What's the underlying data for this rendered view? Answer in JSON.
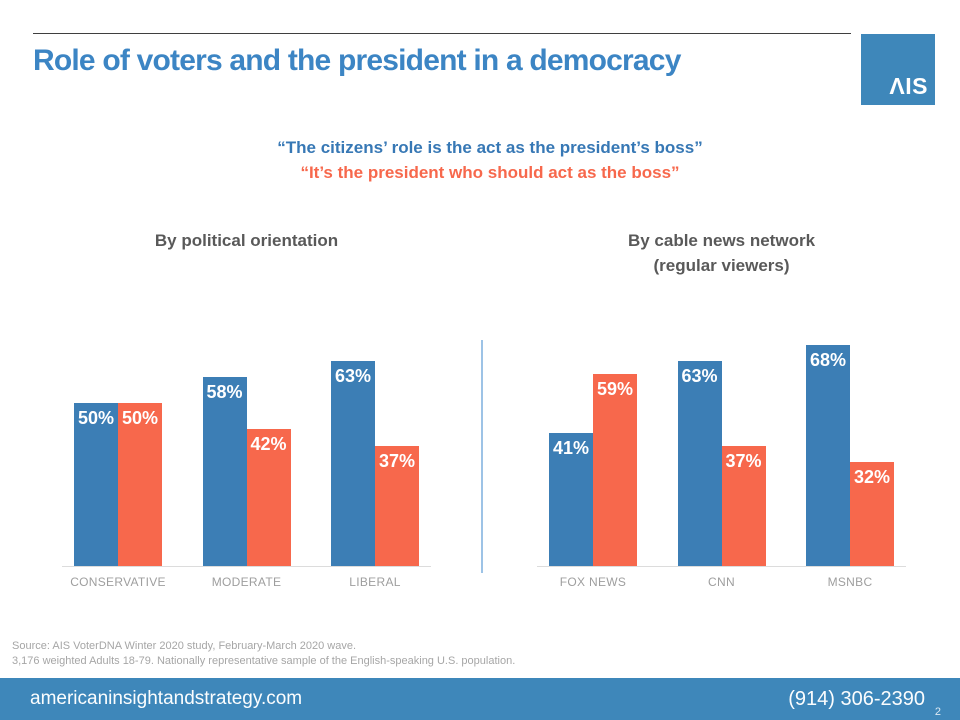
{
  "slide": {
    "title": "Role of voters and the president in a democracy",
    "logo_text": "ΛIS",
    "quote_blue": "“The citizens’ role is the act as the president’s boss”",
    "quote_orange": "“It’s the president who should act as the boss”",
    "page_number": "2"
  },
  "colors": {
    "bar_blue": "#3c7eb5",
    "bar_orange": "#f7684c",
    "title_blue": "#3c85c4",
    "footer_blue": "#3e87ba",
    "divider_blue": "#9dc3e6"
  },
  "chart_data": [
    {
      "type": "bar",
      "title": "By political orientation",
      "subtitle": "",
      "categories": [
        "CONSERVATIVE",
        "MODERATE",
        "LIBERAL"
      ],
      "series": [
        {
          "id": "citizens-boss",
          "name": "“The citizens’ role is the act as the president’s boss”",
          "color": "#3c7eb5",
          "values": [
            50,
            58,
            63
          ]
        },
        {
          "id": "president-boss",
          "name": "“It’s the president who should act as the boss”",
          "color": "#f7684c",
          "values": [
            50,
            42,
            37
          ]
        }
      ],
      "value_suffix": "%",
      "ylim": [
        0,
        70
      ],
      "grid": false,
      "legend": "none (series color-coded to quote colors)"
    },
    {
      "type": "bar",
      "title": "By cable news network",
      "subtitle": "(regular viewers)",
      "categories": [
        "FOX NEWS",
        "CNN",
        "MSNBC"
      ],
      "series": [
        {
          "id": "citizens-boss",
          "name": "“The citizens’ role is the act as the president’s boss”",
          "color": "#3c7eb5",
          "values": [
            41,
            63,
            68
          ]
        },
        {
          "id": "president-boss",
          "name": "“It’s the president who should act as the boss”",
          "color": "#f7684c",
          "values": [
            59,
            37,
            32
          ]
        }
      ],
      "value_suffix": "%",
      "ylim": [
        0,
        70
      ],
      "grid": false,
      "legend": "none (series color-coded to quote colors)"
    }
  ],
  "source": {
    "line1": "Source: AIS VoterDNA Winter 2020 study, February-March 2020 wave.",
    "line2": "3,176 weighted Adults 18-79. Nationally representative sample of the English-speaking U.S. population."
  },
  "footer": {
    "website": "americaninsightandstrategy.com",
    "phone": "(914) 306-2390"
  }
}
